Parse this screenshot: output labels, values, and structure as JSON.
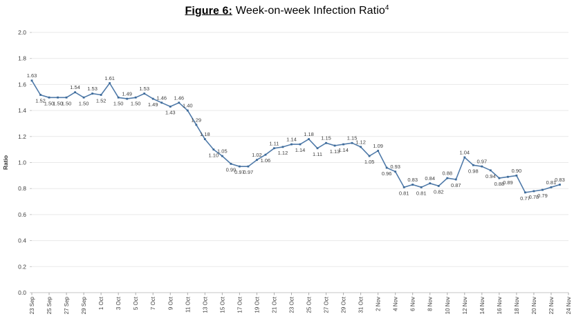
{
  "title": {
    "figure_label": "Figure 6:",
    "text": "Week-on-week Infection Ratio",
    "footnote_marker": "4"
  },
  "chart_data": {
    "type": "line",
    "title": "Figure 6: Week-on-week Infection Ratio",
    "title_footnote_marker": "4",
    "xlabel": "",
    "ylabel": "Ratio",
    "ylim": [
      0.0,
      2.0
    ],
    "ytick_step": 0.2,
    "y_tick_labels": [
      "0.0",
      "0.2",
      "0.4",
      "0.6",
      "0.8",
      "1.0",
      "1.2",
      "1.4",
      "1.6",
      "1.8",
      "2.0"
    ],
    "grid": "horizontal",
    "legend_position": "none",
    "line_color": "#4f7aa9",
    "marker_color": "#3d6a99",
    "data_label_color": "#3d3d3d",
    "axis_text_color": "#3f3f3f",
    "grid_color": "#e9e9e9",
    "axis_line_color": "#c6c6c6",
    "x_span_days": 62,
    "x_tick_interval_days": 2,
    "x_tick_labels": [
      "23 Sep",
      "25 Sep",
      "27 Sep",
      "29 Sep",
      "1 Oct",
      "3 Oct",
      "5 Oct",
      "7 Oct",
      "9 Oct",
      "11 Oct",
      "13 Oct",
      "15 Oct",
      "17 Oct",
      "19 Oct",
      "21 Oct",
      "23 Oct",
      "25 Oct",
      "27 Oct",
      "29 Oct",
      "31 Oct",
      "2 Nov",
      "4 Nov",
      "6 Nov",
      "8 Nov",
      "10 Nov",
      "12 Nov",
      "14 Nov",
      "16 Nov",
      "18 Nov",
      "20 Nov",
      "22 Nov",
      "24 Nov"
    ],
    "x": [
      "23 Sep",
      "24 Sep",
      "25 Sep",
      "26 Sep",
      "27 Sep",
      "28 Sep",
      "29 Sep",
      "30 Sep",
      "1 Oct",
      "2 Oct",
      "3 Oct",
      "4 Oct",
      "5 Oct",
      "6 Oct",
      "7 Oct",
      "8 Oct",
      "9 Oct",
      "10 Oct",
      "11 Oct",
      "12 Oct",
      "13 Oct",
      "14 Oct",
      "15 Oct",
      "16 Oct",
      "17 Oct",
      "18 Oct",
      "19 Oct",
      "20 Oct",
      "21 Oct",
      "22 Oct",
      "23 Oct",
      "24 Oct",
      "25 Oct",
      "26 Oct",
      "27 Oct",
      "28 Oct",
      "29 Oct",
      "30 Oct",
      "31 Oct",
      "1 Nov",
      "2 Nov",
      "3 Nov",
      "4 Nov",
      "5 Nov",
      "6 Nov",
      "7 Nov",
      "8 Nov",
      "9 Nov",
      "10 Nov",
      "11 Nov",
      "12 Nov",
      "13 Nov",
      "14 Nov",
      "15 Nov",
      "16 Nov",
      "17 Nov",
      "18 Nov",
      "19 Nov",
      "20 Nov",
      "21 Nov",
      "22 Nov",
      "23 Nov"
    ],
    "series": [
      {
        "name": "Week-on-week Infection Ratio",
        "values": [
          1.63,
          1.52,
          1.5,
          1.5,
          1.5,
          1.54,
          1.5,
          1.53,
          1.52,
          1.61,
          1.5,
          1.49,
          1.5,
          1.53,
          1.49,
          1.46,
          1.43,
          1.46,
          1.4,
          1.29,
          1.18,
          1.1,
          1.05,
          0.99,
          0.97,
          0.97,
          1.02,
          1.06,
          1.11,
          1.12,
          1.14,
          1.14,
          1.18,
          1.11,
          1.15,
          1.13,
          1.14,
          1.15,
          1.12,
          1.05,
          1.09,
          0.96,
          0.93,
          0.81,
          0.83,
          0.81,
          0.84,
          0.82,
          0.88,
          0.87,
          1.04,
          0.98,
          0.97,
          0.94,
          0.88,
          0.89,
          0.9,
          0.77,
          0.78,
          0.79,
          0.81,
          0.83
        ],
        "label_positions": [
          "above",
          "below",
          "below",
          "below",
          "below",
          "above",
          "below",
          "above",
          "below",
          "above",
          "below",
          "above",
          "below",
          "above",
          "below",
          "above",
          "below",
          "above",
          "above",
          "above",
          "above",
          "below",
          "above",
          "below",
          "below",
          "below",
          "above",
          "below",
          "above",
          "below",
          "above",
          "below",
          "above",
          "below",
          "above",
          "below",
          "below",
          "above",
          "above",
          "below",
          "above",
          "below",
          "above",
          "below",
          "above",
          "below",
          "above",
          "below",
          "above",
          "below",
          "above",
          "below",
          "above",
          "below",
          "below",
          "below",
          "above",
          "below",
          "below",
          "below",
          "above",
          "above"
        ]
      }
    ]
  }
}
